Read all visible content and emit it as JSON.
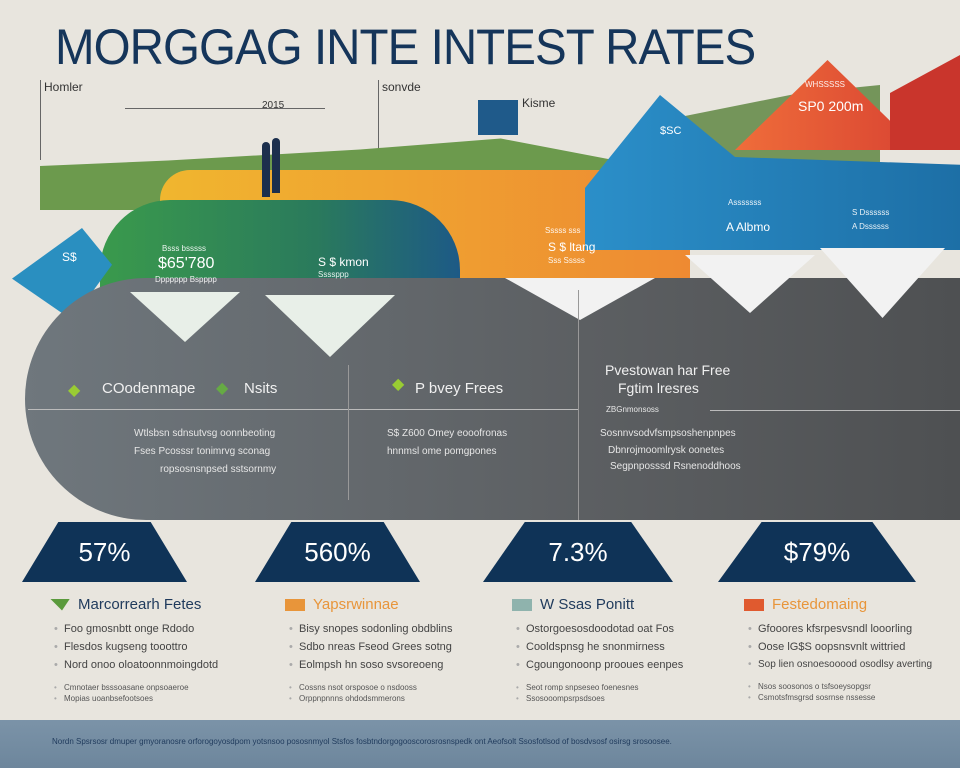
{
  "title": "MORGGAG INTE INTEST RATES",
  "top_labels": {
    "left": "Homler",
    "year": "2015",
    "middle": "sonvde",
    "right": "Kisme"
  },
  "bands": {
    "blue_arrow": "S$",
    "green": {
      "header": "Bsss bsssss",
      "value": "$65'780",
      "sub": "Dpppppp Bspppp",
      "value2": "S $ kmon",
      "sub2": "Ssssppp"
    },
    "orange": {
      "header": "Sssss sss",
      "value": "S $ ltang",
      "sub": "Sss Sssss"
    },
    "blue": {
      "peak": "$SC",
      "header": "Asssssss",
      "value": "A Albmo",
      "header2": "S Dssssss",
      "sub2": "A Dssssss"
    },
    "red": {
      "header": "WHSSSSS",
      "value": "SP0 200m"
    }
  },
  "panel": {
    "col1": {
      "heading1": "COodenmape",
      "heading2": "Nsits",
      "lines": [
        "Wtlsbsn sdnsutvsg oonnbeoting",
        "Fses Pcosssr tonimrvg sconag",
        "ropsosnsnpsed sstsornmy"
      ]
    },
    "col2": {
      "heading": "P bvey  Frees",
      "lines": [
        "S$ Z600 Omey eooofronas",
        "hnnmsl ome pomgpones"
      ]
    },
    "col3": {
      "heading1": "Pvestowan har Free",
      "heading2": "Fgtim lresres",
      "sub": "ZBGnmonsoss",
      "lines": [
        "Sosnnvsodvfsmpsoshenpnpes",
        "Dbnrojmoomlrysk oonetes",
        "Segpnposssd Rsnenoddhoos"
      ]
    }
  },
  "percentages": [
    "57%",
    "560%",
    "7.3%",
    "$79%"
  ],
  "columns": [
    {
      "title": "Marcorrearh Fetes",
      "color": "#5a9a3c",
      "title_color": "#1f3a5c",
      "items": [
        "Foo gmosnbtt onge Rdodo",
        "Flesdos kugseng tooottro",
        "Nord onoo oloatoonnmoingdotd"
      ],
      "small": [
        "Cmnotaer bsssoasane onpsoaeroe",
        "Mopias uoanbsefootsoes"
      ]
    },
    {
      "title": "Yapsrwinnae",
      "color": "#e8953a",
      "title_color": "#e8953a",
      "items": [
        "Bisy snopes sodonling obdblins",
        "Sdbo nreas Fseod Grees sotng",
        "Eolmpsh hn soso svsoreoeng"
      ],
      "small": [
        "Cossns nsot orsposoe o nsdooss",
        "Orppnpnnns ohdodsmmerons"
      ]
    },
    {
      "title": "W Ssas Ponitt",
      "color": "#8fb3ad",
      "title_color": "#1f3a5c",
      "items": [
        "Ostorgoesosdoodotad oat Fos",
        "Cooldspnsg he snonmirness",
        "Cgoungonoonp prooues eenpes"
      ],
      "small": [
        "Seot romp snpseseo foenesnes",
        "Ssosooompsrpsdsoes"
      ]
    },
    {
      "title": "Festedomaing",
      "color": "#e05a2f",
      "title_color": "#e8953a",
      "items": [
        "Gfooores kfsrpesvsndl looorling",
        "Oose lG$S oopsnsvnlt wittried",
        "Sop lien osnoesooood osodlsy averting"
      ],
      "small": [
        "Nsos soosonos o tsfsoeysopgsr",
        "Csmotsfmsgrsd sosrnse nssesse"
      ]
    }
  ],
  "footer": "Nordn Spsrsosr dmuper gmyoranosre orforogoyosdpom yotsnsoo pososnmyol Stsfos fosbtndorgogooscorosrosnspedk ont Aeofsolt Ssosfotlsod of bosdvsosf osirsg srosoosee."
}
